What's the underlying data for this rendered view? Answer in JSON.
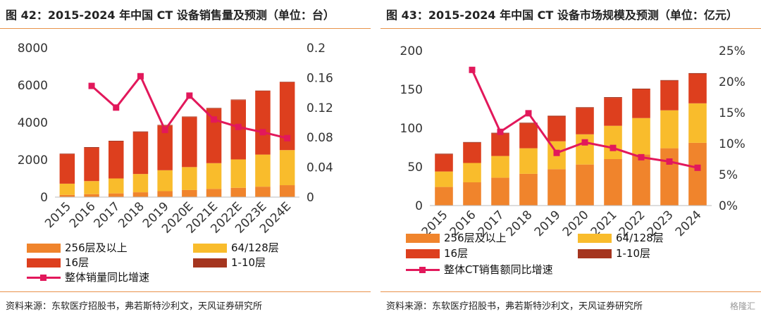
{
  "colors": {
    "c256": "#f0842c",
    "c64": "#f9bc2c",
    "c16": "#dd3f1e",
    "c1_10": "#a5351f",
    "growth": "#e2185b",
    "rule": "#e8924a"
  },
  "panels": [
    {
      "id": "left",
      "title": "图 42：2015-2024 年中国 CT 设备销售量及预测（单位：台）",
      "source": "资料来源：东软医疗招股书，弗若斯特沙利文，天风证券研究所",
      "legend_items": [
        {
          "label": "256层及以上",
          "color_key": "c256",
          "kind": "bar"
        },
        {
          "label": "64/128层",
          "color_key": "c64",
          "kind": "bar"
        },
        {
          "label": "16层",
          "color_key": "c16",
          "kind": "bar"
        },
        {
          "label": "1-10层",
          "color_key": "c1_10",
          "kind": "bar"
        },
        {
          "label": "整体销量同比增速",
          "color_key": "growth",
          "kind": "line"
        }
      ]
    },
    {
      "id": "right",
      "title": "图 43：2015-2024 年中国 CT 设备市场规模及预测（单位：亿元）",
      "source": "资料来源：东软医疗招股书，弗若斯特沙利文，天风证券研究所",
      "legend_items": [
        {
          "label": "256层及以上",
          "color_key": "c256",
          "kind": "bar"
        },
        {
          "label": "64/128层",
          "color_key": "c64",
          "kind": "bar"
        },
        {
          "label": "16层",
          "color_key": "c16",
          "kind": "bar"
        },
        {
          "label": "1-10层",
          "color_key": "c1_10",
          "kind": "bar"
        },
        {
          "label": "整体CT销售额同比增速",
          "color_key": "growth",
          "kind": "line"
        }
      ]
    }
  ],
  "watermark": "格隆汇",
  "chart_data": [
    {
      "type": "bar",
      "stacked": true,
      "categories": [
        "2015",
        "2016",
        "2017",
        "2018",
        "2019",
        "2020E",
        "2021E",
        "2022E",
        "2023E",
        "2024E"
      ],
      "series": [
        {
          "name": "256层及以上",
          "color_key": "c256",
          "values": [
            120,
            160,
            200,
            260,
            320,
            380,
            440,
            500,
            560,
            640
          ]
        },
        {
          "name": "64/128层",
          "color_key": "c64",
          "values": [
            600,
            700,
            800,
            980,
            1120,
            1230,
            1380,
            1520,
            1720,
            1880
          ]
        },
        {
          "name": "16层",
          "color_key": "c16",
          "values": [
            1580,
            1780,
            1980,
            2240,
            2400,
            2680,
            2930,
            3180,
            3400,
            3630
          ]
        },
        {
          "name": "1-10层",
          "color_key": "c1_10",
          "values": [
            30,
            40,
            40,
            40,
            30,
            30,
            30,
            30,
            30,
            30
          ]
        }
      ],
      "line_series": {
        "name": "整体销量同比增速",
        "color_key": "growth",
        "x": [
          "2016",
          "2017",
          "2018",
          "2019",
          "2020E",
          "2021E",
          "2022E",
          "2023E",
          "2024E"
        ],
        "values": [
          0.149,
          0.12,
          0.162,
          0.09,
          0.136,
          0.104,
          0.094,
          0.087,
          0.079
        ]
      },
      "ylim": [
        0,
        8000
      ],
      "y_ticks": [
        0,
        2000,
        4000,
        6000,
        8000
      ],
      "y_tick_labels": [
        "0",
        "2000",
        "4000",
        "6000",
        "8000"
      ],
      "y2lim": [
        0,
        0.2
      ],
      "y2_ticks": [
        0,
        0.04,
        0.08,
        0.12,
        0.16,
        0.2
      ],
      "y2_tick_labels": [
        "0",
        "0.04",
        "0.08",
        "0.12",
        "0.16",
        "0.2"
      ],
      "grid": false,
      "legend_position": "bottom"
    },
    {
      "type": "bar",
      "stacked": true,
      "categories": [
        "2015",
        "2016",
        "2017",
        "2018",
        "2019",
        "2020",
        "2021",
        "2022",
        "2023",
        "2024"
      ],
      "series": [
        {
          "name": "256层及以上",
          "color_key": "c256",
          "values": [
            24,
            30,
            36,
            41,
            47,
            53,
            60,
            66,
            74,
            81
          ]
        },
        {
          "name": "64/128层",
          "color_key": "c64",
          "values": [
            20,
            25,
            28,
            33,
            36,
            39,
            43,
            47,
            49,
            51
          ]
        },
        {
          "name": "16层",
          "color_key": "c16",
          "values": [
            22,
            26,
            29,
            32,
            32,
            34,
            36,
            37,
            38,
            38
          ]
        },
        {
          "name": "1-10层",
          "color_key": "c1_10",
          "values": [
            1,
            1,
            1,
            1,
            1,
            1,
            1,
            1,
            1,
            1
          ]
        }
      ],
      "line_series": {
        "name": "整体CT销售额同比增速",
        "color_key": "growth",
        "x": [
          "2016",
          "2017",
          "2018",
          "2019",
          "2020",
          "2021",
          "2022",
          "2023",
          "2024"
        ],
        "values": [
          0.219,
          0.119,
          0.149,
          0.085,
          0.102,
          0.093,
          0.078,
          0.071,
          0.061
        ]
      },
      "ylim": [
        0,
        200
      ],
      "y_ticks": [
        0,
        50,
        100,
        150,
        200
      ],
      "y_tick_labels": [
        "0",
        "50",
        "100",
        "150",
        "200"
      ],
      "y2lim": [
        0,
        0.25
      ],
      "y2_ticks": [
        0,
        0.05,
        0.1,
        0.15,
        0.2,
        0.25
      ],
      "y2_tick_labels": [
        "0%",
        "5%",
        "10%",
        "15%",
        "20%",
        "25%"
      ],
      "grid": false,
      "legend_position": "bottom"
    }
  ]
}
